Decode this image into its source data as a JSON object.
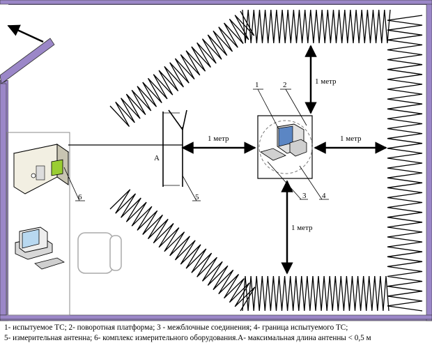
{
  "labels": {
    "n1": "1",
    "n2": "2",
    "n3": "3",
    "n4": "4",
    "n5": "5",
    "n6": "6",
    "a": "A"
  },
  "distances": {
    "antenna_to_eut": "1 метр",
    "eut_to_right_wall": "1 метр",
    "eut_to_top_wall": "1 метр",
    "eut_to_bottom_wall": "1 метр"
  },
  "caption": {
    "line1": "1- испытуемое ТС; 2- поворотная платформа; 3 - межблочные соединения; 4- граница испытуемого ТС;",
    "line2": "5- измерительная антенна; 6- комплекс измерительного оборудования.А- максимальная длина антенны < 0,5 м"
  },
  "colors": {
    "wall": "#9b87c8",
    "line": "#000000",
    "background": "#ffffff"
  }
}
